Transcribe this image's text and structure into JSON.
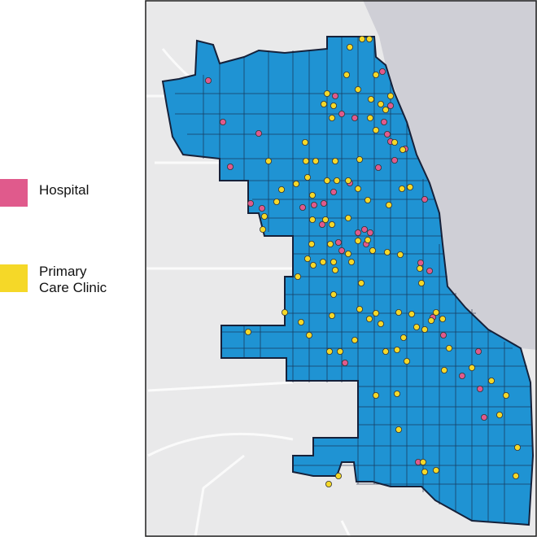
{
  "legend": {
    "hospital": {
      "label": "Hospital",
      "color": "#e05a8c"
    },
    "clinic": {
      "label": "Primary\nCare Clinic",
      "color": "#f5d828"
    }
  },
  "map": {
    "land_color": "#e9e9ea",
    "lake_color": "#cfcfd6",
    "city_color": "#1f93d3",
    "border_color": "#16213a"
  }
}
